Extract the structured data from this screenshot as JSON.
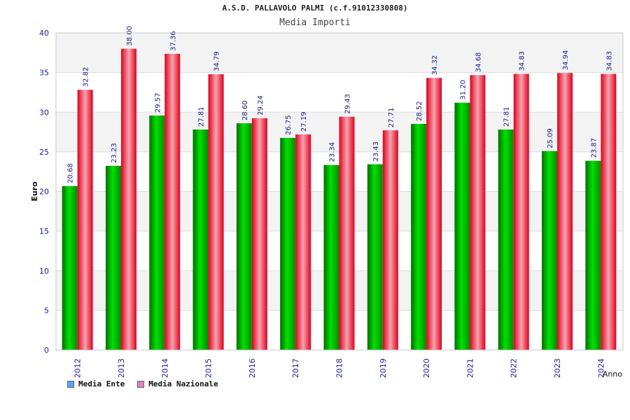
{
  "chart_data": {
    "type": "bar",
    "title": "A.S.D. PALLAVOLO PALMI (c.f.91012330808)",
    "subtitle": "Media Importi",
    "xlabel": "Anno",
    "ylabel": "Euro",
    "ylim": [
      0,
      40
    ],
    "yticks": [
      "0",
      "5",
      "10",
      "15",
      "20",
      "25",
      "30",
      "35",
      "40"
    ],
    "categories": [
      "2012",
      "2013",
      "2014",
      "2015",
      "2016",
      "2017",
      "2018",
      "2019",
      "2020",
      "2021",
      "2022",
      "2023",
      "2024"
    ],
    "series": [
      {
        "name": "Media Ente",
        "color": "#00b000",
        "values": [
          20.68,
          23.23,
          29.57,
          27.81,
          28.6,
          26.75,
          23.34,
          23.43,
          28.52,
          31.2,
          27.81,
          25.09,
          23.87
        ],
        "labels": [
          "20.68",
          "23.23",
          "29.57",
          "27.81",
          "28.60",
          "26.75",
          "23.34",
          "23.43",
          "28.52",
          "31.20",
          "27.81",
          "25.09",
          "23.87"
        ]
      },
      {
        "name": "Media Nazionale",
        "color": "#e8002a",
        "values": [
          32.82,
          38.0,
          37.36,
          34.79,
          29.24,
          27.19,
          29.43,
          27.71,
          34.32,
          34.68,
          34.83,
          34.94,
          34.83
        ],
        "labels": [
          "32.82",
          "38.00",
          "37.36",
          "34.79",
          "29.24",
          "27.19",
          "29.43",
          "27.71",
          "34.32",
          "34.68",
          "34.83",
          "34.94",
          "34.83"
        ]
      }
    ],
    "legend": {
      "position": "bottom-left",
      "items": [
        {
          "label": "Media Ente",
          "swatch": "#5aa0ff"
        },
        {
          "label": "Media Nazionale",
          "swatch": "#e080c0"
        }
      ]
    },
    "grid": true
  }
}
